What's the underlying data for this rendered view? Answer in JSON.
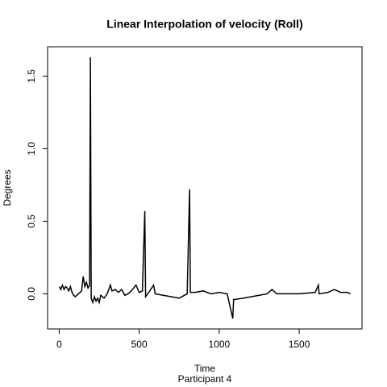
{
  "chart_data": {
    "type": "line",
    "title": "Linear Interpolation of velocity (Roll)",
    "x_label": "Time",
    "subtitle": "Participant  4",
    "y_label": "Degrees",
    "x": [
      0,
      10,
      20,
      30,
      40,
      50,
      60,
      70,
      80,
      90,
      100,
      120,
      140,
      150,
      160,
      170,
      180,
      190,
      195,
      200,
      210,
      220,
      230,
      240,
      250,
      260,
      280,
      300,
      320,
      330,
      350,
      370,
      390,
      410,
      430,
      450,
      480,
      500,
      520,
      535,
      540,
      560,
      590,
      600,
      650,
      700,
      750,
      800,
      815,
      820,
      850,
      900,
      950,
      1000,
      1050,
      1085,
      1090,
      1150,
      1200,
      1250,
      1300,
      1330,
      1360,
      1400,
      1500,
      1600,
      1620,
      1625,
      1680,
      1720,
      1760,
      1800,
      1820
    ],
    "series": [
      {
        "name": "velocity",
        "color": "#000000",
        "values": [
          0.05,
          0.03,
          0.06,
          0.03,
          0.05,
          0.04,
          0.02,
          0.05,
          0.01,
          -0.01,
          -0.02,
          0.0,
          0.02,
          0.12,
          0.05,
          0.08,
          0.04,
          0.06,
          1.63,
          -0.03,
          -0.06,
          -0.02,
          -0.05,
          -0.03,
          -0.06,
          -0.01,
          -0.03,
          0.0,
          0.06,
          0.02,
          0.03,
          0.01,
          0.03,
          -0.01,
          0.0,
          0.02,
          0.06,
          0.01,
          0.02,
          0.57,
          -0.02,
          0.01,
          0.06,
          0.0,
          -0.01,
          -0.02,
          -0.03,
          0.0,
          0.72,
          0.01,
          0.01,
          0.02,
          0.0,
          0.01,
          0.0,
          -0.17,
          -0.04,
          -0.03,
          -0.02,
          -0.01,
          0.0,
          0.03,
          0.0,
          0.0,
          0.0,
          0.01,
          0.06,
          0.0,
          0.01,
          0.03,
          0.01,
          0.01,
          0.0
        ]
      }
    ],
    "xlim": [
      -72.8,
      1892.8
    ],
    "xticks": [
      0,
      500,
      1000,
      1500
    ],
    "ylim": [
      -0.242,
      1.702
    ],
    "yticks": [
      {
        "value": 0,
        "label": "0.0"
      },
      0.5,
      {
        "value": 1,
        "label": "1.0"
      },
      1.5
    ]
  }
}
